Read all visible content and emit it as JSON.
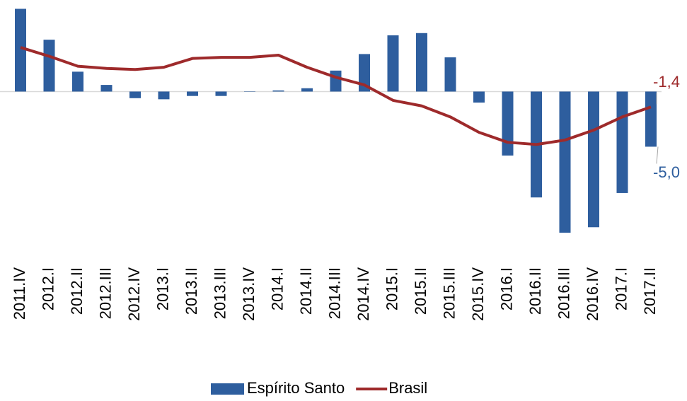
{
  "chart_data": {
    "type": "bar_line",
    "categories": [
      "2011.IV",
      "2012.I",
      "2012.II",
      "2012.III",
      "2012.IV",
      "2013.I",
      "2013.II",
      "2013.III",
      "2013.IV",
      "2014.I",
      "2014.II",
      "2014.III",
      "2014.IV",
      "2015.I",
      "2015.II",
      "2015.III",
      "2015.IV",
      "2016.I",
      "2016.II",
      "2016.III",
      "2016.IV",
      "2017.I",
      "2017.II"
    ],
    "series": [
      {
        "name": "Espírito Santo",
        "type": "bar",
        "color": "#2e5e9e",
        "values": [
          7.5,
          4.7,
          1.8,
          0.6,
          -0.6,
          -0.7,
          -0.4,
          -0.4,
          0,
          0.1,
          0.3,
          1.9,
          3.4,
          5.1,
          5.3,
          3.1,
          -1.0,
          -5.8,
          -9.6,
          -12.8,
          -12.3,
          -9.2,
          -5.0
        ],
        "value_labels": [
          null,
          null,
          null,
          null,
          null,
          null,
          null,
          null,
          null,
          null,
          null,
          null,
          null,
          null,
          null,
          null,
          null,
          null,
          null,
          null,
          null,
          null,
          "-5,0"
        ]
      },
      {
        "name": "Brasil",
        "type": "line",
        "color": "#9e2a2b",
        "values": [
          4.0,
          3.2,
          2.3,
          2.1,
          2.0,
          2.2,
          3.0,
          3.1,
          3.1,
          3.3,
          2.2,
          1.3,
          0.6,
          -0.8,
          -1.3,
          -2.3,
          -3.7,
          -4.6,
          -4.8,
          -4.4,
          -3.5,
          -2.3,
          -1.4
        ],
        "value_labels": [
          null,
          null,
          null,
          null,
          null,
          null,
          null,
          null,
          null,
          null,
          null,
          null,
          null,
          null,
          null,
          null,
          null,
          null,
          null,
          null,
          null,
          null,
          "-1,4"
        ]
      }
    ],
    "ylim": [
      -13.5,
      8.3
    ],
    "legend": "bottom"
  }
}
